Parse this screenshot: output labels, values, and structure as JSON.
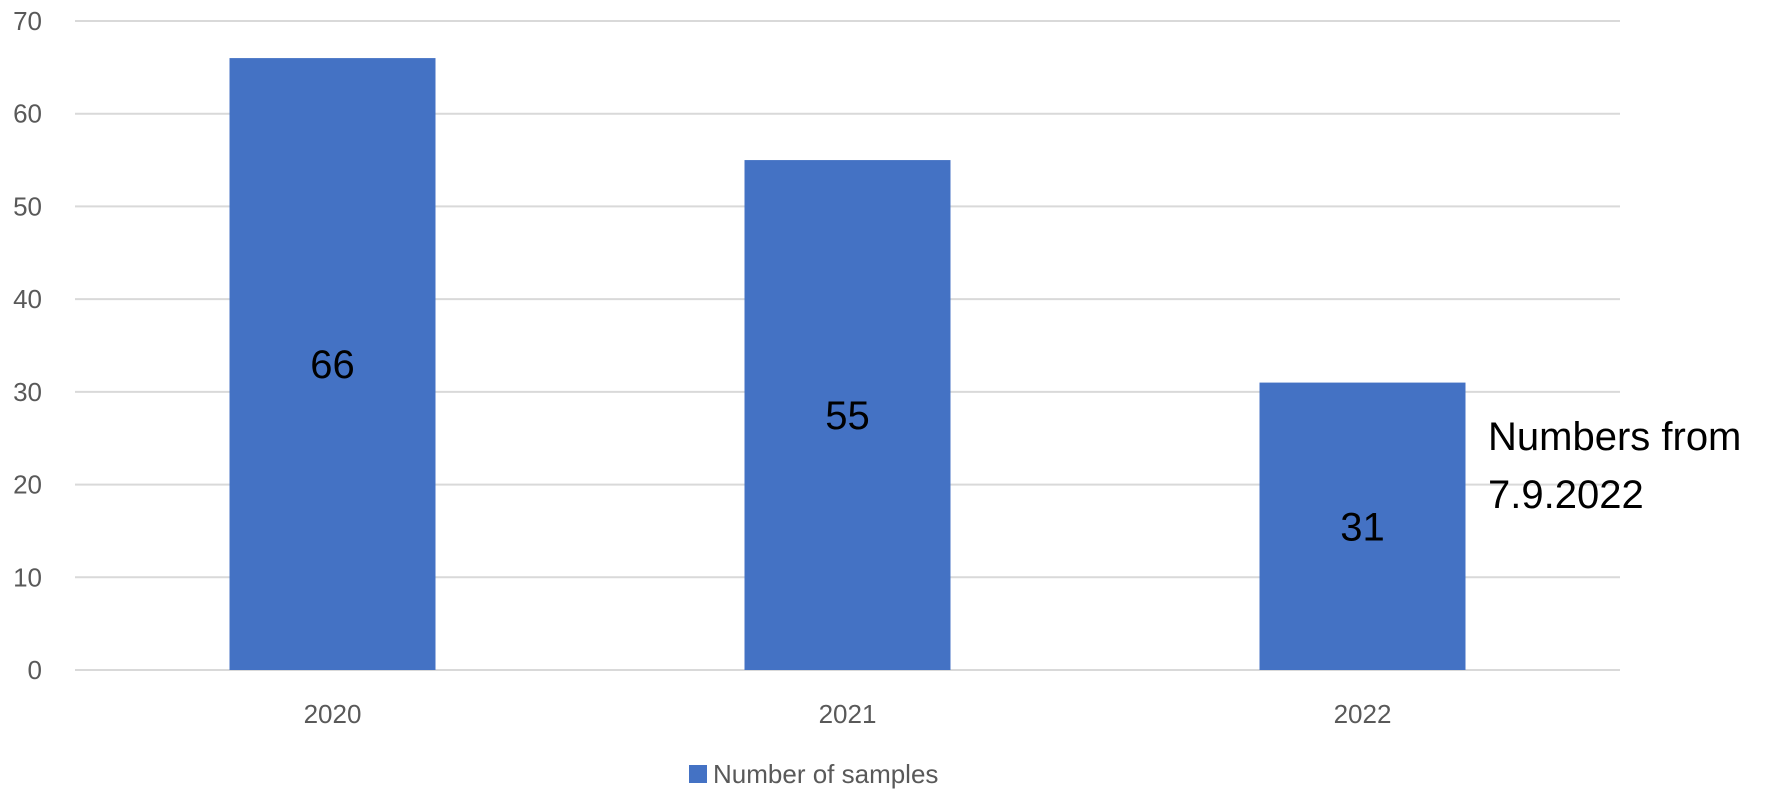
{
  "chart_data": {
    "type": "bar",
    "categories": [
      "2020",
      "2021",
      "2022"
    ],
    "series": [
      {
        "name": "Number of samples",
        "values": [
          66,
          55,
          31
        ],
        "color": "#4472C4"
      }
    ],
    "ylim": [
      0,
      70
    ],
    "yticks": [
      0,
      10,
      20,
      30,
      40,
      50,
      60,
      70
    ],
    "grid": true,
    "legend": "bottom",
    "data_labels": true,
    "annotation": [
      "Numbers from",
      "7.9.2022"
    ],
    "title": "",
    "xlabel": "",
    "ylabel": ""
  }
}
